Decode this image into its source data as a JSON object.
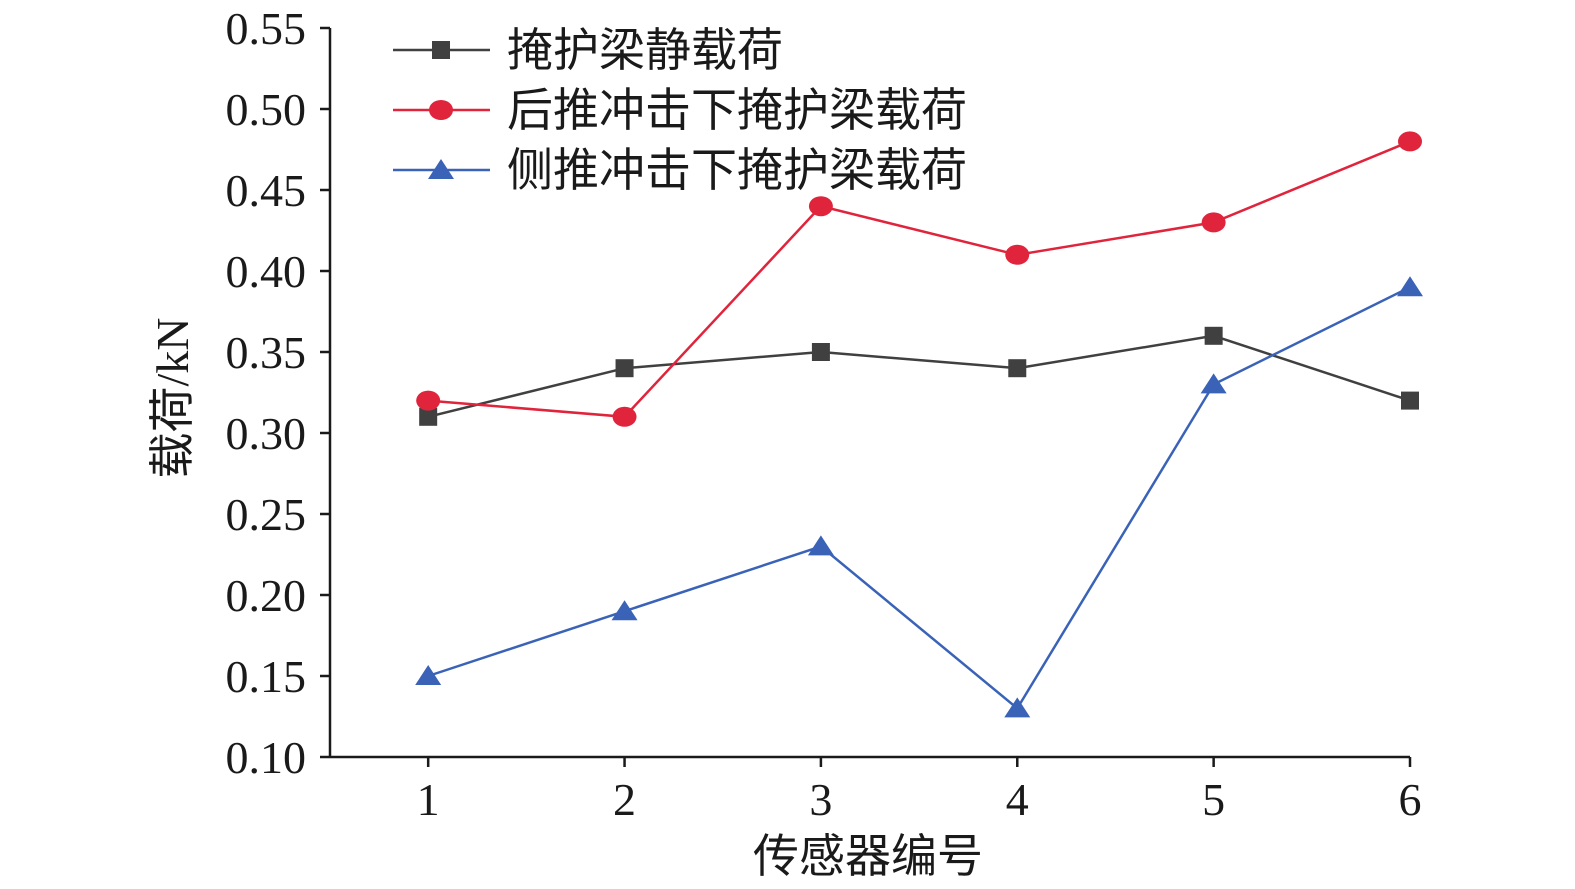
{
  "chart_data": {
    "type": "line",
    "xlabel": "传感器编号",
    "ylabel": "载荷/kN",
    "categories": [
      "1",
      "2",
      "3",
      "4",
      "5",
      "6"
    ],
    "x": [
      1,
      2,
      3,
      4,
      5,
      6
    ],
    "ylim": [
      0.1,
      0.55
    ],
    "yticks": [
      "0.10",
      "0.15",
      "0.20",
      "0.25",
      "0.30",
      "0.35",
      "0.40",
      "0.45",
      "0.50",
      "0.55"
    ],
    "grid": false,
    "legend_position": "top-left",
    "series": [
      {
        "name": "掩护梁静载荷",
        "color": "#404040",
        "marker": "square",
        "values": [
          0.31,
          0.34,
          0.35,
          0.34,
          0.36,
          0.32
        ]
      },
      {
        "name": "后推冲击下掩护梁载荷",
        "color": "#e0243c",
        "marker": "circle",
        "values": [
          0.32,
          0.31,
          0.44,
          0.41,
          0.43,
          0.48
        ]
      },
      {
        "name": "侧推冲击下掩护梁载荷",
        "color": "#3a63b8",
        "marker": "triangle",
        "values": [
          0.15,
          0.19,
          0.23,
          0.13,
          0.33,
          0.39
        ]
      }
    ]
  }
}
